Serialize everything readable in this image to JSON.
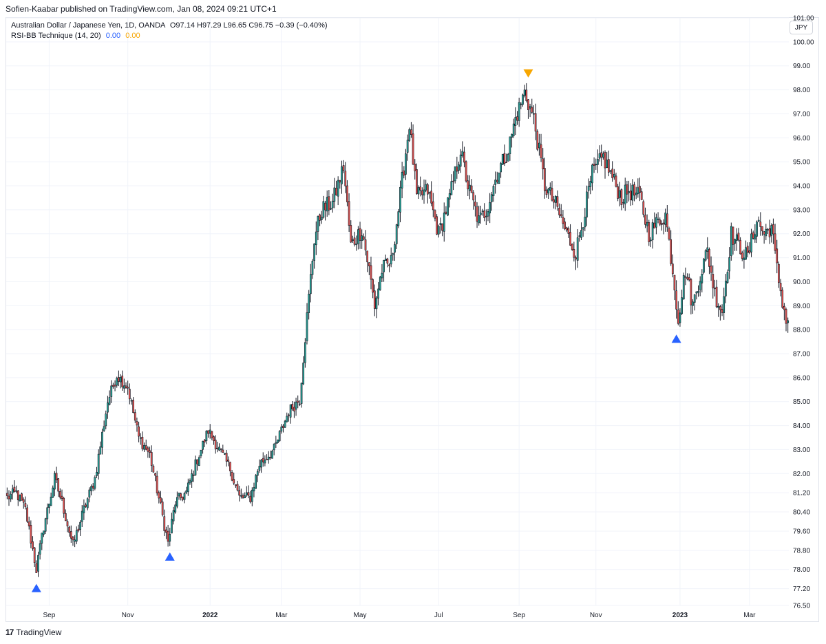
{
  "header": {
    "published": "Sofien-Kaabar published on TradingView.com, Jan 08, 2024 09:21 UTC+1"
  },
  "legend": {
    "symbol_line": "Australian Dollar / Japanese Yen, 1D, OANDA",
    "ohlc": "O97.14  H97.29  L96.65  C96.75  −0.39 (−0.40%)",
    "indicator": "RSI-BB Technique (14, 20)",
    "ind_val_1": "0.00",
    "ind_val_2": "0.00"
  },
  "currency_button": "JPY",
  "footer": {
    "logo_text": "TradingView",
    "logo_mark": "17"
  },
  "colors": {
    "up": "#26a69a",
    "down": "#ef5350",
    "body": "#131722",
    "buy_marker": "#2962ff",
    "sell_marker": "#f7a600"
  },
  "chart_data": {
    "type": "candlestick",
    "symbol": "AUDJPY",
    "y_ticks": [
      "101.00",
      "100.00",
      "99.00",
      "98.00",
      "97.00",
      "96.00",
      "95.00",
      "94.00",
      "93.00",
      "92.00",
      "91.00",
      "90.00",
      "89.00",
      "88.00",
      "87.00",
      "86.00",
      "85.00",
      "84.00",
      "83.00",
      "82.00",
      "81.20",
      "80.40",
      "79.60",
      "78.80",
      "78.00",
      "77.20",
      "76.50"
    ],
    "x_ticks": [
      {
        "label": "Sep",
        "bold": false,
        "bar": 23
      },
      {
        "label": "Nov",
        "bold": false,
        "bar": 66
      },
      {
        "label": "2022",
        "bold": true,
        "bar": 111
      },
      {
        "label": "Mar",
        "bold": false,
        "bar": 150
      },
      {
        "label": "May",
        "bold": false,
        "bar": 193
      },
      {
        "label": "Jul",
        "bold": false,
        "bar": 236
      },
      {
        "label": "Sep",
        "bold": false,
        "bar": 280
      },
      {
        "label": "Nov",
        "bold": false,
        "bar": 322
      },
      {
        "label": "2023",
        "bold": true,
        "bar": 368
      },
      {
        "label": "Mar",
        "bold": false,
        "bar": 406
      }
    ],
    "anchors": [
      [
        0,
        81.0
      ],
      [
        5,
        81.2
      ],
      [
        10,
        80.5
      ],
      [
        16,
        78.0
      ],
      [
        20,
        79.8
      ],
      [
        26,
        81.8
      ],
      [
        30,
        80.8
      ],
      [
        36,
        79.0
      ],
      [
        42,
        80.5
      ],
      [
        48,
        81.8
      ],
      [
        55,
        85.0
      ],
      [
        60,
        86.1
      ],
      [
        66,
        85.6
      ],
      [
        72,
        83.5
      ],
      [
        78,
        82.8
      ],
      [
        84,
        80.6
      ],
      [
        88,
        79.1
      ],
      [
        92,
        80.8
      ],
      [
        98,
        81.2
      ],
      [
        104,
        82.6
      ],
      [
        110,
        83.8
      ],
      [
        116,
        83.0
      ],
      [
        122,
        82.2
      ],
      [
        127,
        81.0
      ],
      [
        133,
        81.0
      ],
      [
        138,
        82.4
      ],
      [
        146,
        83.0
      ],
      [
        154,
        84.6
      ],
      [
        160,
        85.1
      ],
      [
        164,
        88.5
      ],
      [
        168,
        91.8
      ],
      [
        172,
        93.0
      ],
      [
        178,
        93.3
      ],
      [
        184,
        94.8
      ],
      [
        188,
        91.5
      ],
      [
        194,
        92.2
      ],
      [
        198,
        90.5
      ],
      [
        201,
        89.0
      ],
      [
        205,
        90.5
      ],
      [
        210,
        90.8
      ],
      [
        214,
        93.0
      ],
      [
        220,
        96.6
      ],
      [
        224,
        93.5
      ],
      [
        230,
        93.8
      ],
      [
        236,
        92.0
      ],
      [
        242,
        93.5
      ],
      [
        248,
        95.5
      ],
      [
        252,
        94.0
      ],
      [
        258,
        92.5
      ],
      [
        262,
        93.0
      ],
      [
        268,
        94.5
      ],
      [
        274,
        95.5
      ],
      [
        278,
        96.8
      ],
      [
        283,
        97.9
      ],
      [
        288,
        96.8
      ],
      [
        294,
        94.0
      ],
      [
        300,
        93.2
      ],
      [
        306,
        92.0
      ],
      [
        311,
        91.2
      ],
      [
        316,
        93.0
      ],
      [
        320,
        94.5
      ],
      [
        326,
        95.2
      ],
      [
        330,
        94.5
      ],
      [
        336,
        93.5
      ],
      [
        340,
        93.8
      ],
      [
        346,
        93.5
      ],
      [
        351,
        92.0
      ],
      [
        356,
        92.5
      ],
      [
        360,
        92.8
      ],
      [
        364,
        90.5
      ],
      [
        367,
        88.5
      ],
      [
        371,
        90.5
      ],
      [
        375,
        89.0
      ],
      [
        379,
        90.3
      ],
      [
        383,
        91.3
      ],
      [
        387,
        89.5
      ],
      [
        391,
        88.8
      ],
      [
        396,
        92.0
      ],
      [
        400,
        91.5
      ],
      [
        405,
        91.0
      ],
      [
        410,
        92.6
      ],
      [
        414,
        92.0
      ],
      [
        418,
        92.3
      ],
      [
        421,
        90.5
      ],
      [
        424,
        89.2
      ],
      [
        426,
        88.4
      ]
    ],
    "signals": [
      {
        "type": "buy",
        "bar": 16
      },
      {
        "type": "buy",
        "bar": 89
      },
      {
        "type": "sell",
        "bar": 285
      },
      {
        "type": "buy",
        "bar": 366
      }
    ]
  }
}
